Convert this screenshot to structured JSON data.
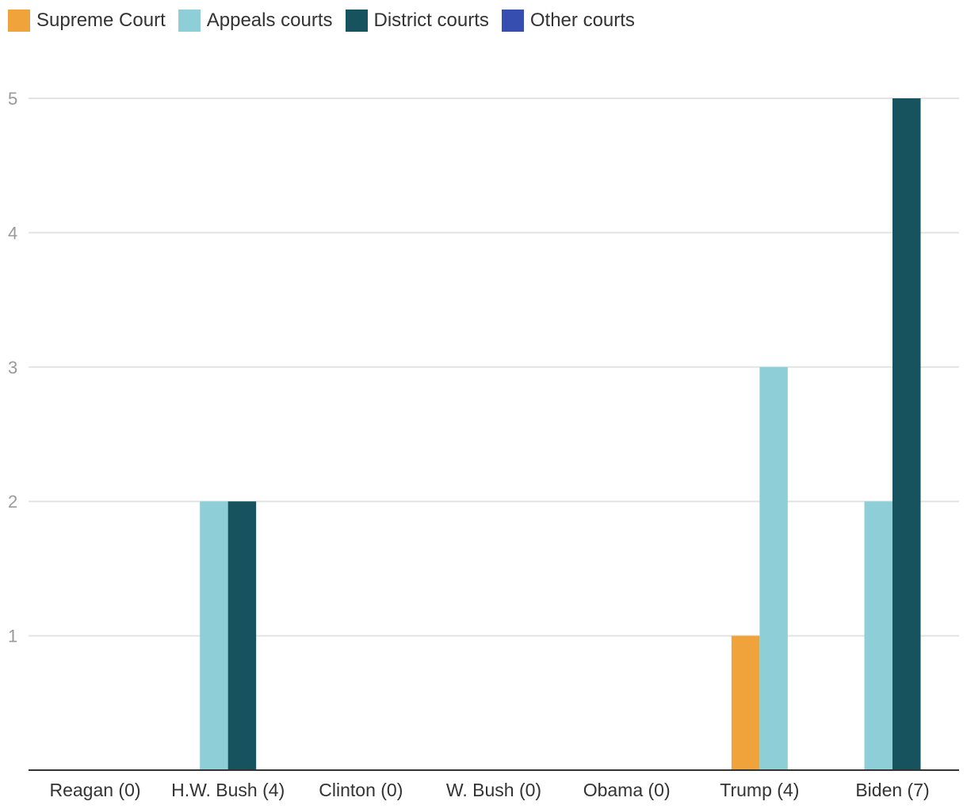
{
  "chart_data": {
    "type": "bar",
    "categories": [
      "Reagan (0)",
      "H.W. Bush (4)",
      "Clinton (0)",
      "W. Bush (0)",
      "Obama (0)",
      "Trump (4)",
      "Biden (7)"
    ],
    "series": [
      {
        "name": "Supreme Court",
        "color": "#f0a33b",
        "values": [
          0,
          0,
          0,
          0,
          0,
          1,
          0
        ]
      },
      {
        "name": "Appeals courts",
        "color": "#8ecfd7",
        "values": [
          0,
          2,
          0,
          0,
          0,
          3,
          2
        ]
      },
      {
        "name": "District courts",
        "color": "#17535e",
        "values": [
          0,
          2,
          0,
          0,
          0,
          0,
          5
        ]
      },
      {
        "name": "Other courts",
        "color": "#354eb0",
        "values": [
          0,
          0,
          0,
          0,
          0,
          0,
          0
        ]
      }
    ],
    "yticks": [
      1,
      2,
      3,
      4,
      5
    ],
    "ylim": [
      0,
      5
    ],
    "grid": true,
    "legend_position": "top-left"
  }
}
